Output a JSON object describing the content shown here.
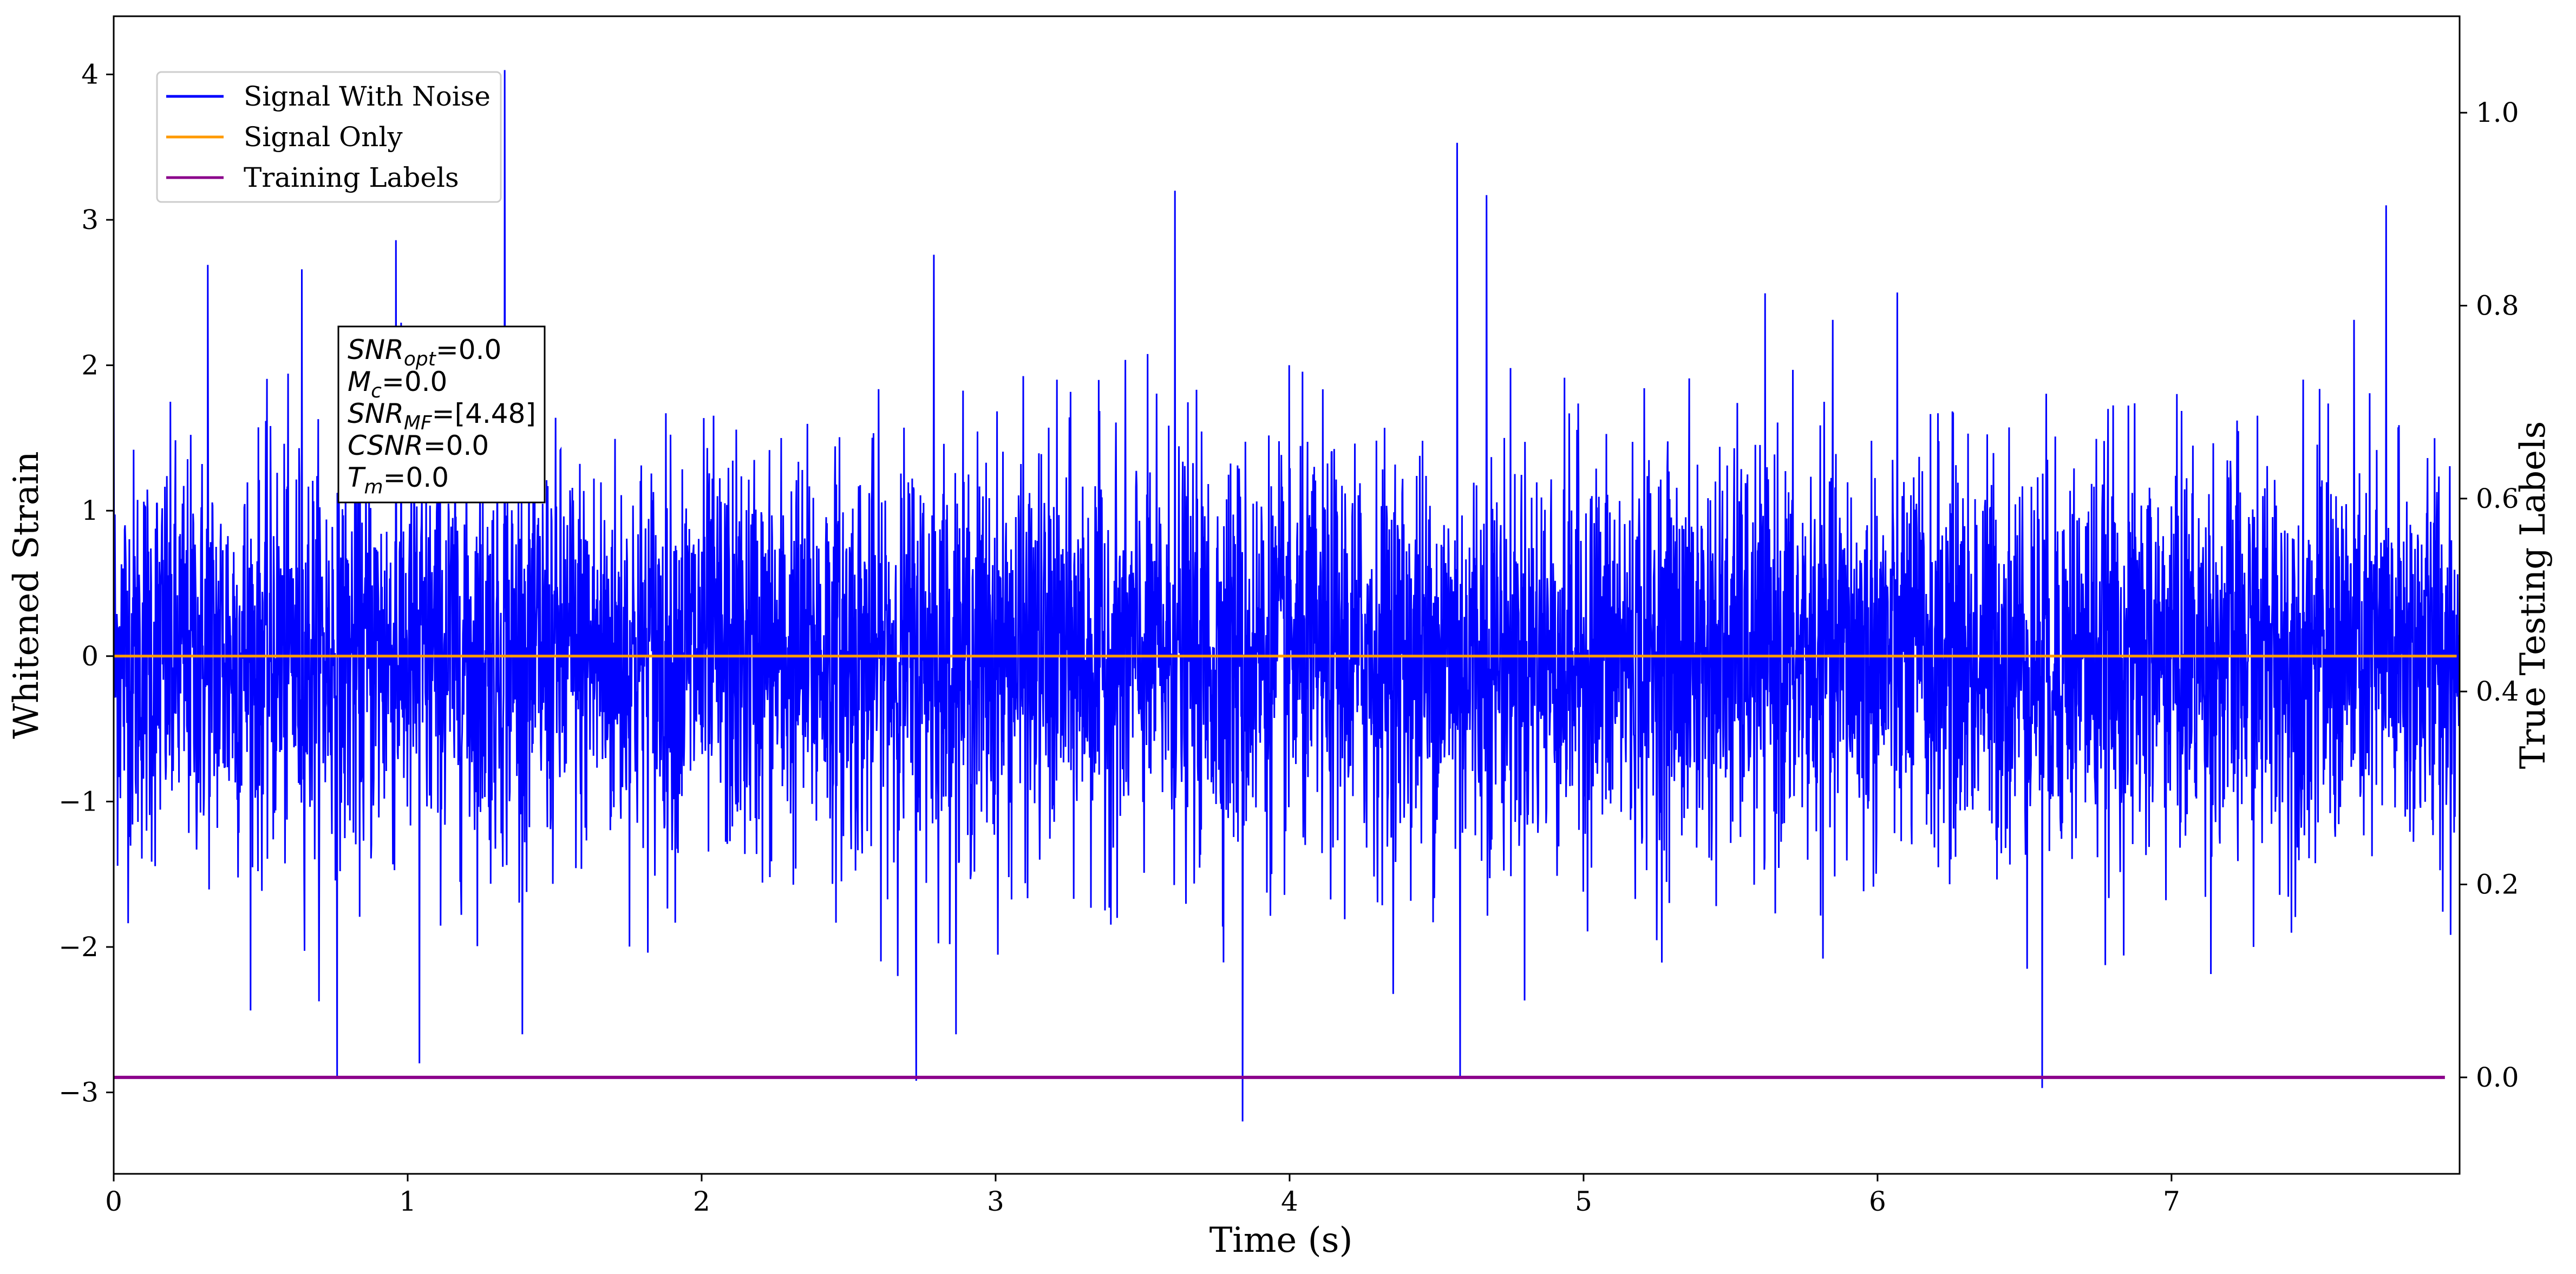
{
  "chart_data": {
    "type": "line",
    "xlabel": "Time (s)",
    "ylabel": "Whitened Strain",
    "y2label": "True Testing Labels",
    "xlim": [
      0,
      7.98
    ],
    "ylim": [
      -3.56,
      4.4
    ],
    "y2lim": [
      -0.1,
      1.1
    ],
    "xticks": [
      0,
      1,
      2,
      3,
      4,
      5,
      6,
      7
    ],
    "yticks": [
      -3,
      -2,
      -1,
      0,
      1,
      2,
      3,
      4
    ],
    "y2ticks": [
      0.0,
      0.2,
      0.4,
      0.6,
      0.8,
      1.0
    ],
    "grid": false,
    "legend_position": "top-left",
    "series": [
      {
        "name": "Signal With Noise",
        "color": "#0000ff",
        "axis": "left",
        "description_stats": {
          "mean": 0,
          "std": 0.7,
          "min": -3.2,
          "max": 4.03
        },
        "peaks": [
          {
            "x": 0.0,
            "y": 2.27
          },
          {
            "x": 0.32,
            "y": 2.69
          },
          {
            "x": 0.64,
            "y": 2.66
          },
          {
            "x": 0.96,
            "y": 2.86
          },
          {
            "x": 1.33,
            "y": 4.03
          },
          {
            "x": 2.79,
            "y": 2.76
          },
          {
            "x": 3.61,
            "y": 3.2
          },
          {
            "x": 4.57,
            "y": 3.53
          },
          {
            "x": 4.67,
            "y": 3.17
          },
          {
            "x": 7.73,
            "y": 3.1
          }
        ],
        "troughs": [
          {
            "x": 0.76,
            "y": -2.9
          },
          {
            "x": 1.04,
            "y": -2.8
          },
          {
            "x": 2.73,
            "y": -2.92
          },
          {
            "x": 3.84,
            "y": -3.2
          },
          {
            "x": 4.58,
            "y": -2.9
          },
          {
            "x": 6.56,
            "y": -2.97
          }
        ]
      },
      {
        "name": "Signal Only",
        "color": "#ff9a00",
        "axis": "left",
        "x": [
          0,
          7.97
        ],
        "y": [
          0,
          0
        ]
      },
      {
        "name": "Training Labels",
        "color": "#8b008b",
        "axis": "right",
        "x": [
          0,
          7.93
        ],
        "y": [
          0,
          0
        ]
      }
    ],
    "annotation": {
      "lines": [
        {
          "name": "SNR",
          "sub": "opt",
          "value": "=0.0"
        },
        {
          "name": "M",
          "sub": "c",
          "value": "=0.0"
        },
        {
          "name": "SNR",
          "sub": "MF",
          "value": "=[4.48]"
        },
        {
          "name": "CSNR",
          "sub": "",
          "value": "=0.0"
        },
        {
          "name": "T",
          "sub": "m",
          "value": "=0.0"
        }
      ]
    }
  }
}
